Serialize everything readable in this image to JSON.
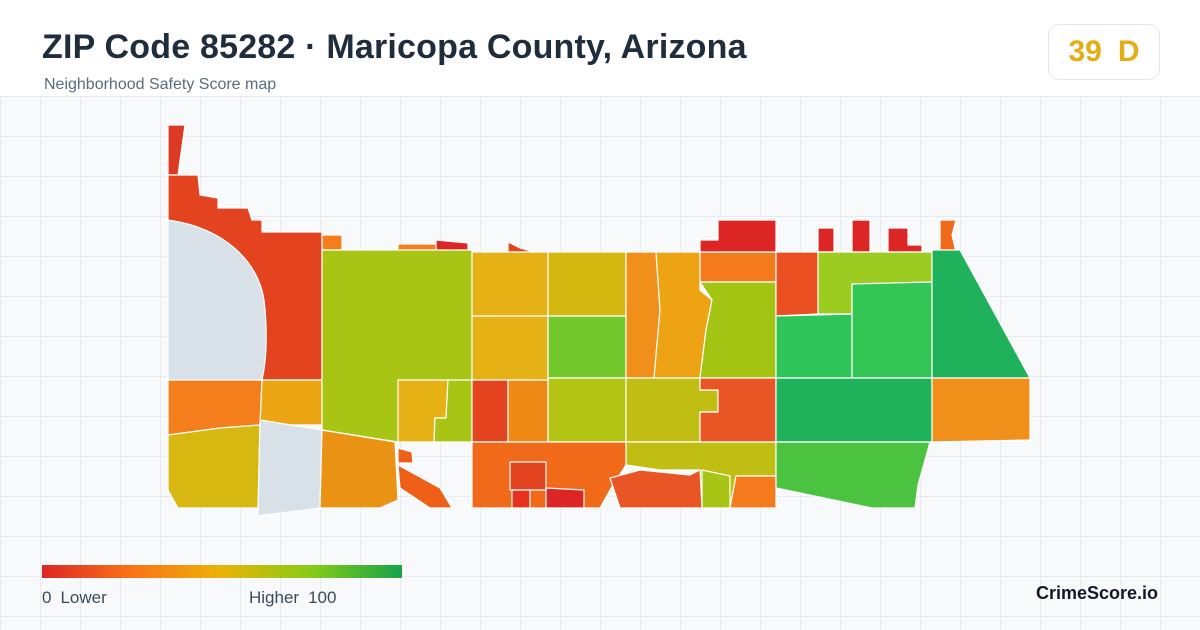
{
  "header": {
    "title": "ZIP Code 85282 · Maricopa County, Arizona",
    "subtitle": "Neighborhood Safety Score map"
  },
  "score": {
    "value": "39",
    "grade": "D",
    "color": "#e6ac14"
  },
  "legend": {
    "low_value": "0",
    "low_label": "Lower",
    "high_label": "Higher",
    "high_value": "100",
    "gradient": [
      "#dc2626",
      "#f97316",
      "#eab308",
      "#84cc16",
      "#16a34a"
    ]
  },
  "brand": "CrimeScore.io",
  "map": {
    "no_data_color": "#d9e1e8",
    "border_color": "#ffffff"
  }
}
